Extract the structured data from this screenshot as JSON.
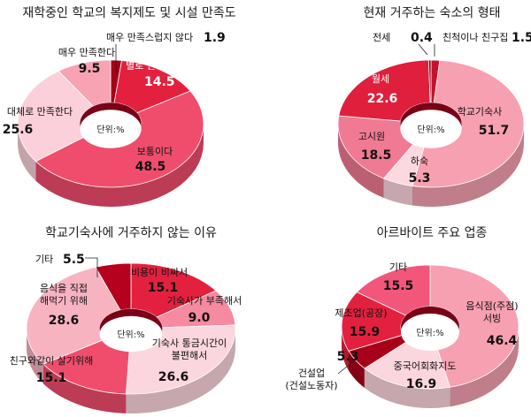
{
  "unit_label": "단위:%",
  "palette": [
    "#b8001e",
    "#e0203c",
    "#f25a78",
    "#f7a5b5",
    "#fbd3dc",
    "#c8102e"
  ],
  "chart_data": [
    {
      "type": "pie",
      "title": "재학중인 학교의 복지제도 및 시설 만족도",
      "categories": [
        "매우 만족스럽지 않다",
        "별로 만족스럽지 않다",
        "보통이다",
        "대체로 만족한다",
        "매우 만족한다"
      ],
      "values": [
        1.9,
        14.5,
        48.5,
        25.6,
        9.5
      ],
      "colors": [
        "#a50018",
        "#e3213f",
        "#f04d6c",
        "#fbd0da",
        "#f7a3b4"
      ],
      "label_colors": [
        "#111111",
        "#ffffff",
        "#111111",
        "#111111",
        "#111111"
      ]
    },
    {
      "type": "pie",
      "title": "현재 거주하는 숙소의 형태",
      "categories": [
        "친척이나 친구집",
        "학교기숙사",
        "하숙",
        "고시원",
        "월세",
        "전세"
      ],
      "values": [
        1.5,
        51.7,
        5.3,
        18.5,
        22.6,
        0.4
      ],
      "colors": [
        "#c8102e",
        "#f6a0b1",
        "#fcd8e0",
        "#f07a93",
        "#e01f3c",
        "#7a0010"
      ],
      "label_colors": [
        "#111111",
        "#111111",
        "#111111",
        "#111111",
        "#ffffff",
        "#111111"
      ]
    },
    {
      "type": "pie",
      "title": "학교기숙사에 거주하지 않는 이유",
      "categories": [
        "비용이 비싸서",
        "기숙사가 부족해서",
        "기숙사 통금시간이 불편해서",
        "친구와같이 살기위해",
        "음식을 직접 해먹기 위해",
        "기타"
      ],
      "values": [
        15.1,
        9.0,
        26.6,
        15.1,
        28.6,
        5.5
      ],
      "colors": [
        "#e3213f",
        "#f58aa1",
        "#fcd6de",
        "#f04d6c",
        "#f8b3c1",
        "#b5001e"
      ],
      "label_colors": [
        "#111111",
        "#111111",
        "#111111",
        "#111111",
        "#111111",
        "#111111"
      ]
    },
    {
      "type": "pie",
      "title": "아르바이트 주요 업종",
      "categories": [
        "음식점(주점) 서빙",
        "중국어회화지도",
        "건설업 (건설노동자)",
        "제조업(공장)",
        "기타"
      ],
      "values": [
        46.4,
        16.9,
        5.3,
        15.9,
        15.5
      ],
      "colors": [
        "#f6a0b1",
        "#fcd6de",
        "#a8001a",
        "#e3213f",
        "#f2567a"
      ],
      "label_colors": [
        "#111111",
        "#111111",
        "#111111",
        "#111111",
        "#111111"
      ]
    }
  ]
}
